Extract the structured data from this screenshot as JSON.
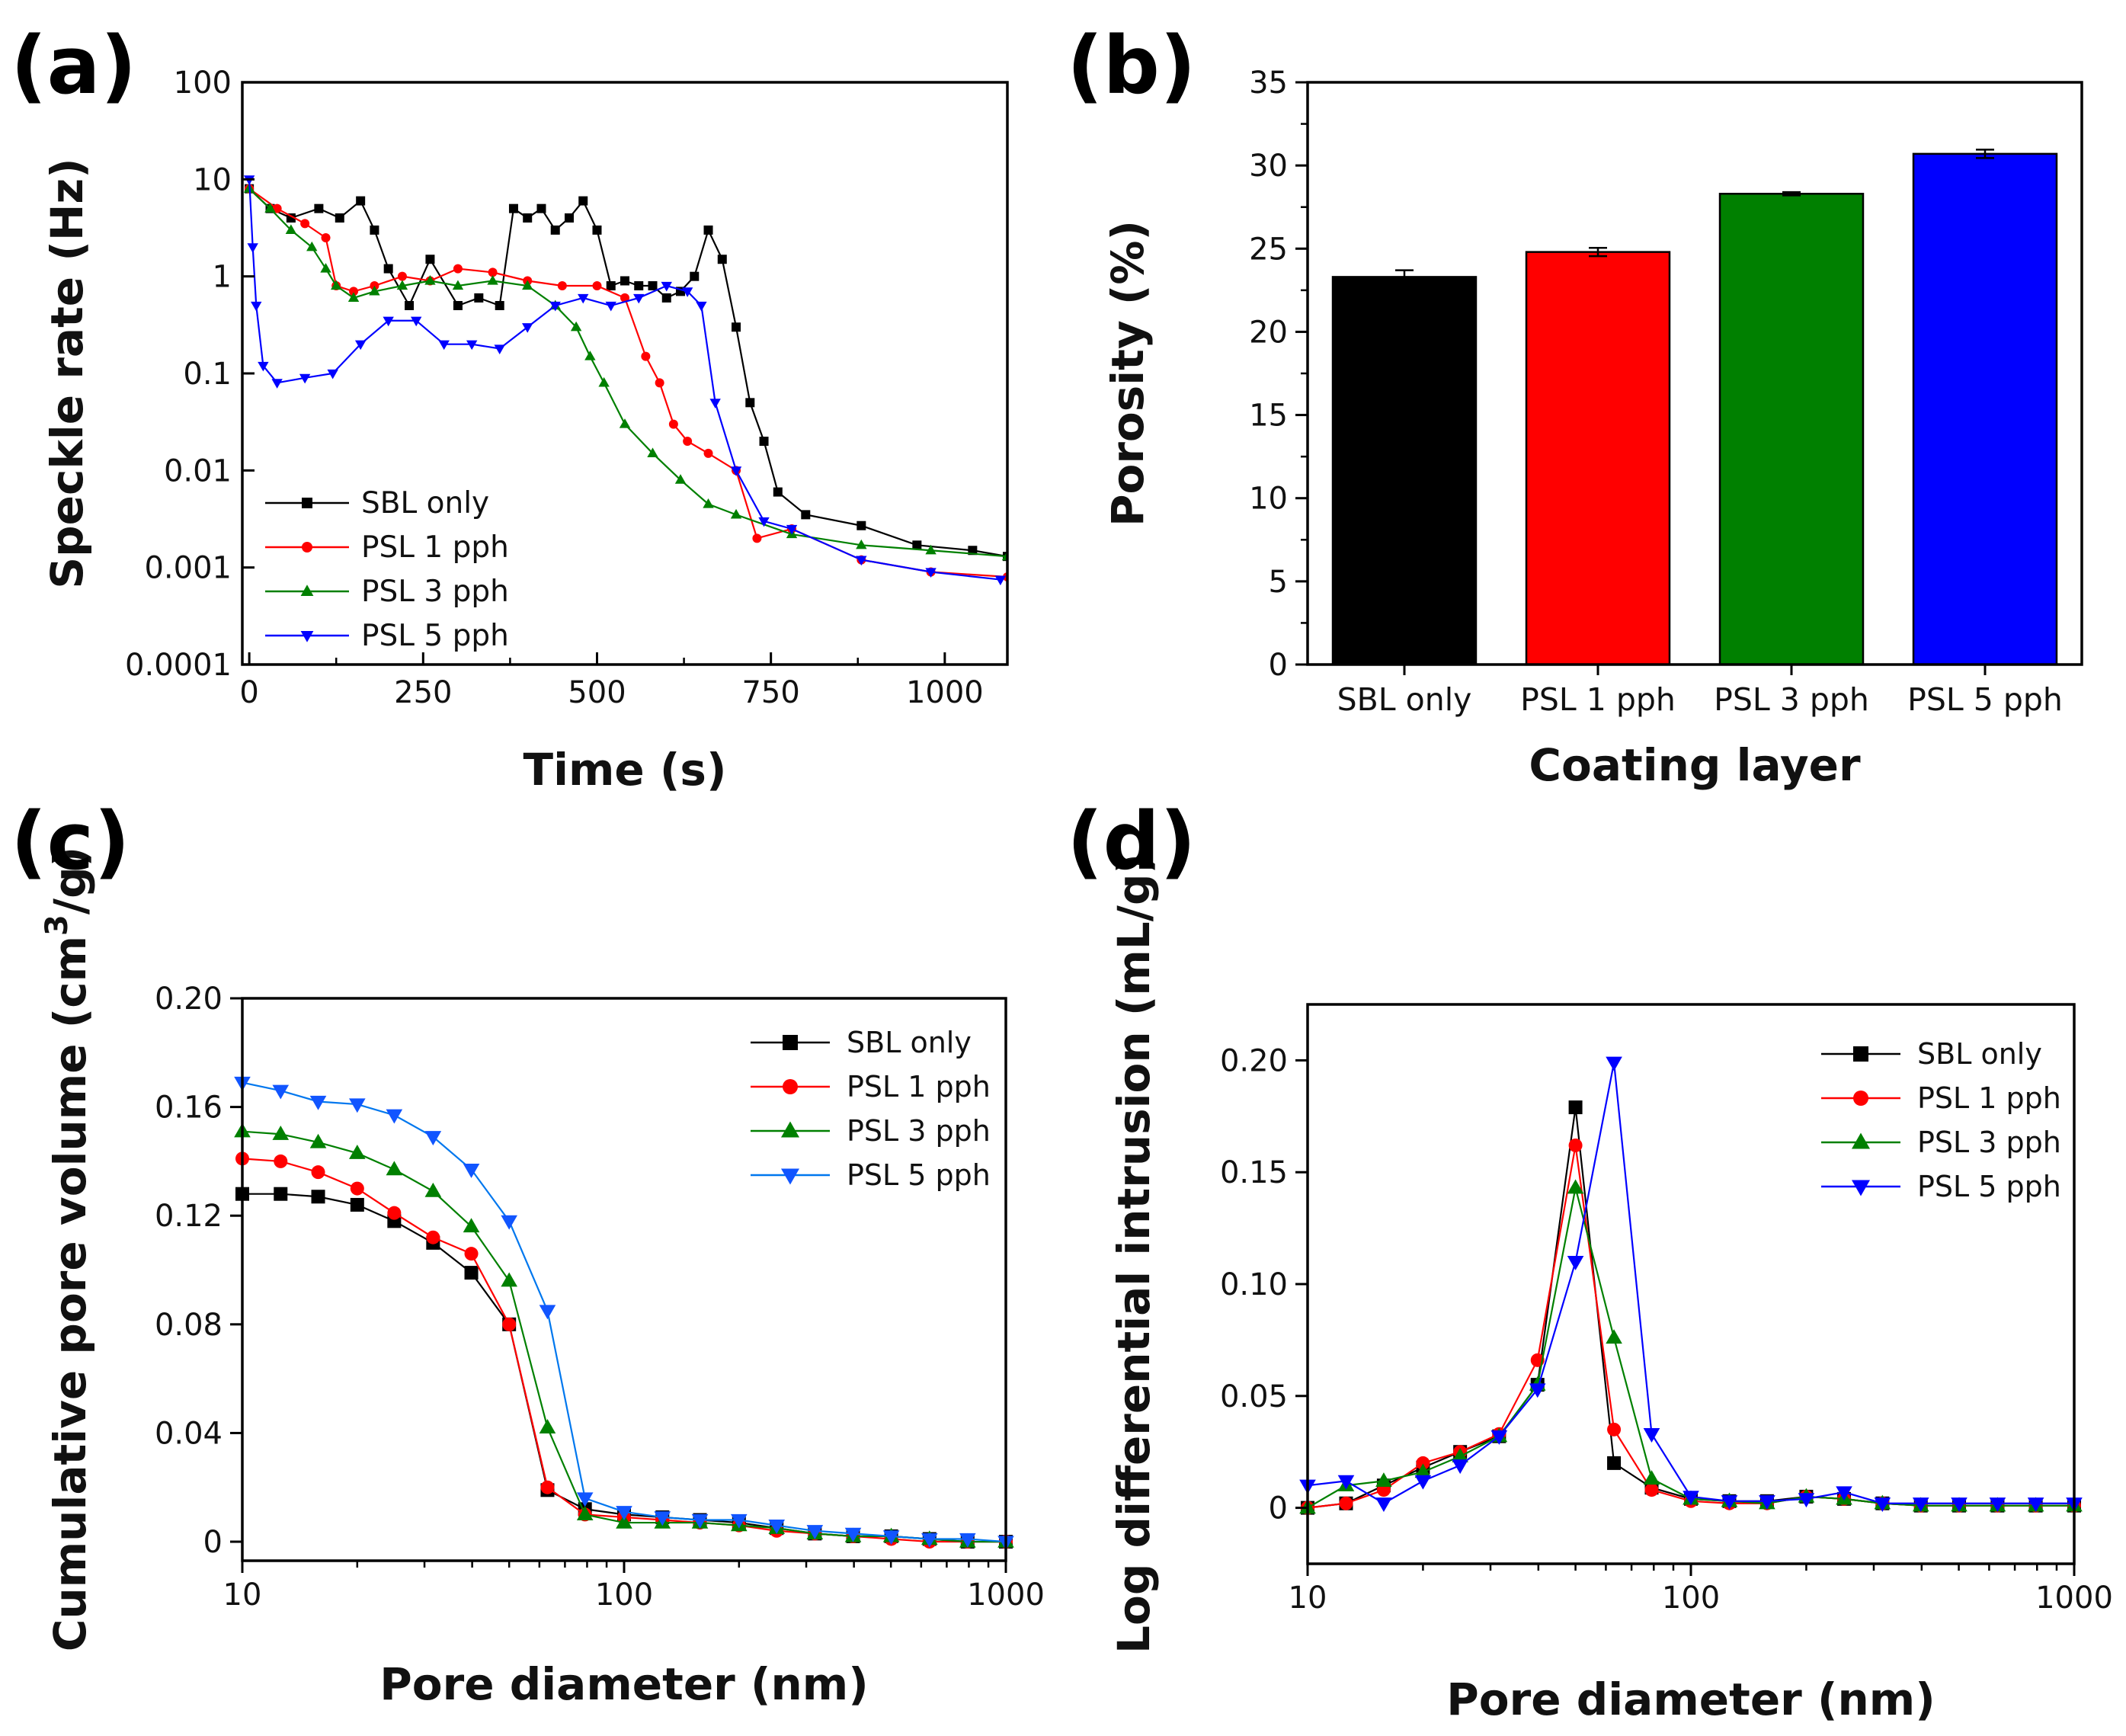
{
  "panels": {
    "a": "(a)",
    "b": "(b)",
    "c": "(c)",
    "d": "(d)"
  },
  "colors": {
    "SBL only": "#000000",
    "PSL 1 pph": "#ff0000",
    "PSL 3 pph": "#008000",
    "PSL 5 pph": "#0000ff",
    "PSL 5 pph (c)": "#0077ee",
    "PSL 5 pph marker (c)": "#1155ff"
  },
  "chart_data": [
    {
      "panel": "a",
      "type": "line",
      "xlabel": "Time (s)",
      "ylabel": "Speckle rate (Hz)",
      "yscale": "log",
      "xlim": [
        -10,
        1090
      ],
      "ylim": [
        0.0001,
        100
      ],
      "xticks": [
        "0",
        "250",
        "500",
        "750",
        "1000"
      ],
      "yticks": [
        "100",
        "10",
        "1",
        "0.1",
        "0.01",
        "0.001",
        "0.0001"
      ],
      "legend_position": "bottom-left",
      "series": [
        {
          "name": "SBL only",
          "x": [
            0,
            30,
            60,
            100,
            130,
            160,
            180,
            200,
            230,
            260,
            300,
            330,
            360,
            380,
            400,
            420,
            440,
            460,
            480,
            500,
            520,
            540,
            560,
            580,
            600,
            620,
            640,
            660,
            680,
            700,
            720,
            740,
            760,
            800,
            880,
            960,
            1040,
            1090
          ],
          "y": [
            8,
            5,
            4,
            5,
            4,
            6,
            3,
            1.2,
            0.5,
            1.5,
            0.5,
            0.6,
            0.5,
            5,
            4,
            5,
            3,
            4,
            6,
            3,
            0.8,
            0.9,
            0.8,
            0.8,
            0.6,
            0.7,
            1,
            3,
            1.5,
            0.3,
            0.05,
            0.02,
            0.006,
            0.0035,
            0.0027,
            0.0017,
            0.0015,
            0.0013
          ]
        },
        {
          "name": "PSL 1 pph",
          "x": [
            0,
            40,
            80,
            110,
            125,
            150,
            180,
            220,
            260,
            300,
            350,
            400,
            450,
            500,
            540,
            570,
            590,
            610,
            630,
            660,
            700,
            730,
            780,
            880,
            980,
            1090
          ],
          "y": [
            8,
            5,
            3.5,
            2.5,
            0.8,
            0.7,
            0.8,
            1,
            0.9,
            1.2,
            1.1,
            0.9,
            0.8,
            0.8,
            0.6,
            0.15,
            0.08,
            0.03,
            0.02,
            0.015,
            0.01,
            0.002,
            0.0025,
            0.0012,
            0.0009,
            0.0008
          ]
        },
        {
          "name": "PSL 3 pph",
          "x": [
            0,
            30,
            60,
            90,
            110,
            125,
            150,
            180,
            220,
            260,
            300,
            350,
            400,
            440,
            470,
            490,
            510,
            540,
            580,
            620,
            660,
            700,
            780,
            880,
            980,
            1090
          ],
          "y": [
            8,
            5,
            3,
            2,
            1.2,
            0.8,
            0.6,
            0.7,
            0.8,
            0.9,
            0.8,
            0.9,
            0.8,
            0.5,
            0.3,
            0.15,
            0.08,
            0.03,
            0.015,
            0.008,
            0.0045,
            0.0035,
            0.0022,
            0.0017,
            0.0015,
            0.0013
          ]
        },
        {
          "name": "PSL 5 pph",
          "x": [
            0,
            5,
            10,
            20,
            40,
            80,
            120,
            160,
            200,
            240,
            280,
            320,
            360,
            400,
            440,
            480,
            520,
            560,
            600,
            630,
            650,
            670,
            700,
            740,
            780,
            880,
            980,
            1080
          ],
          "y": [
            10,
            2,
            0.5,
            0.12,
            0.08,
            0.09,
            0.1,
            0.2,
            0.35,
            0.35,
            0.2,
            0.2,
            0.18,
            0.3,
            0.5,
            0.6,
            0.5,
            0.6,
            0.8,
            0.7,
            0.5,
            0.05,
            0.01,
            0.003,
            0.0025,
            0.0012,
            0.0009,
            0.00075
          ]
        }
      ]
    },
    {
      "panel": "b",
      "type": "bar",
      "xlabel": "Coating layer",
      "ylabel": "Porosity (%)",
      "ylim": [
        0,
        35
      ],
      "yticks": [
        "0",
        "5",
        "10",
        "15",
        "20",
        "25",
        "30",
        "35"
      ],
      "categories": [
        "SBL only",
        "PSL 1 pph",
        "PSL 3 pph",
        "PSL 5 pph"
      ],
      "values": [
        23.3,
        24.8,
        28.3,
        30.7
      ],
      "errors": [
        0.4,
        0.25,
        0.1,
        0.25
      ]
    },
    {
      "panel": "c",
      "type": "line",
      "xlabel": "Pore diameter (nm)",
      "ylabel": "Cumulative pore volume (cm",
      "ylabel_sup": "3",
      "ylabel_end": "/g)",
      "xscale": "log",
      "xlim": [
        10,
        1000
      ],
      "ylim": [
        -0.007,
        0.2
      ],
      "xticks": [
        "10",
        "100",
        "1000"
      ],
      "yticks": [
        "0",
        "0.04",
        "0.08",
        "0.12",
        "0.16",
        "0.20"
      ],
      "legend_position": "top-right",
      "series": [
        {
          "name": "SBL only",
          "x": [
            10,
            12.6,
            15.8,
            20,
            25,
            31.6,
            39.8,
            50,
            63,
            79,
            100,
            126,
            158,
            200,
            251,
            316,
            398,
            501,
            631,
            794,
            1000
          ],
          "y": [
            0.128,
            0.128,
            0.127,
            0.124,
            0.118,
            0.11,
            0.099,
            0.08,
            0.019,
            0.012,
            0.01,
            0.009,
            0.008,
            0.007,
            0.005,
            0.003,
            0.002,
            0.002,
            0.001,
            0.0,
            0.0
          ]
        },
        {
          "name": "PSL 1 pph",
          "x": [
            10,
            12.6,
            15.8,
            20,
            25,
            31.6,
            39.8,
            50,
            63,
            79,
            100,
            126,
            158,
            200,
            251,
            316,
            398,
            501,
            631,
            794,
            1000
          ],
          "y": [
            0.141,
            0.14,
            0.136,
            0.13,
            0.121,
            0.112,
            0.106,
            0.08,
            0.02,
            0.01,
            0.009,
            0.008,
            0.007,
            0.006,
            0.004,
            0.003,
            0.002,
            0.001,
            0.0,
            0.0,
            0.0
          ]
        },
        {
          "name": "PSL 3 pph",
          "x": [
            10,
            12.6,
            15.8,
            20,
            25,
            31.6,
            39.8,
            50,
            63,
            79,
            100,
            126,
            158,
            200,
            251,
            316,
            398,
            501,
            631,
            794,
            1000
          ],
          "y": [
            0.151,
            0.15,
            0.147,
            0.143,
            0.137,
            0.129,
            0.116,
            0.096,
            0.042,
            0.01,
            0.007,
            0.007,
            0.007,
            0.006,
            0.005,
            0.003,
            0.002,
            0.002,
            0.001,
            0.0,
            0.0
          ]
        },
        {
          "name": "PSL 5 pph",
          "x": [
            10,
            12.6,
            15.8,
            20,
            25,
            31.6,
            39.8,
            50,
            63,
            79,
            100,
            126,
            158,
            200,
            251,
            316,
            398,
            501,
            631,
            794,
            1000
          ],
          "y": [
            0.169,
            0.166,
            0.162,
            0.161,
            0.157,
            0.149,
            0.137,
            0.118,
            0.085,
            0.016,
            0.011,
            0.009,
            0.008,
            0.008,
            0.006,
            0.004,
            0.003,
            0.002,
            0.001,
            0.001,
            0.0
          ]
        }
      ]
    },
    {
      "panel": "d",
      "type": "line",
      "xlabel": "Pore diameter (nm)",
      "ylabel": "Log differential intrusion (mL/g)",
      "xscale": "log",
      "xlim": [
        10,
        1000
      ],
      "ylim": [
        -0.025,
        0.225
      ],
      "xticks": [
        "10",
        "100",
        "1000"
      ],
      "yticks": [
        "0",
        "0.05",
        "0.10",
        "0.15",
        "0.20"
      ],
      "legend_position": "top-right",
      "series": [
        {
          "name": "SBL only",
          "x": [
            10,
            12.6,
            15.8,
            20,
            25,
            31.6,
            39.8,
            50,
            63,
            79,
            100,
            126,
            158,
            200,
            251,
            316,
            398,
            501,
            631,
            794,
            1000
          ],
          "y": [
            0.0,
            0.002,
            0.01,
            0.018,
            0.025,
            0.032,
            0.055,
            0.179,
            0.02,
            0.009,
            0.004,
            0.003,
            0.003,
            0.005,
            0.004,
            0.002,
            0.001,
            0.001,
            0.001,
            0.001,
            0.001
          ]
        },
        {
          "name": "PSL 1 pph",
          "x": [
            10,
            12.6,
            15.8,
            20,
            25,
            31.6,
            39.8,
            50,
            63,
            79,
            100,
            126,
            158,
            200,
            251,
            316,
            398,
            501,
            631,
            794,
            1000
          ],
          "y": [
            0.0,
            0.002,
            0.008,
            0.02,
            0.025,
            0.033,
            0.066,
            0.162,
            0.035,
            0.008,
            0.003,
            0.002,
            0.002,
            0.005,
            0.004,
            0.002,
            0.001,
            0.001,
            0.001,
            0.001,
            0.001
          ]
        },
        {
          "name": "PSL 3 pph",
          "x": [
            10,
            12.6,
            15.8,
            20,
            25,
            31.6,
            39.8,
            50,
            63,
            79,
            100,
            126,
            158,
            200,
            251,
            316,
            398,
            501,
            631,
            794,
            1000
          ],
          "y": [
            0.0,
            0.01,
            0.012,
            0.016,
            0.023,
            0.032,
            0.055,
            0.143,
            0.076,
            0.013,
            0.004,
            0.003,
            0.002,
            0.005,
            0.004,
            0.002,
            0.001,
            0.001,
            0.001,
            0.001,
            0.001
          ]
        },
        {
          "name": "PSL 5 pph",
          "x": [
            10,
            12.6,
            15.8,
            20,
            25,
            31.6,
            39.8,
            50,
            63,
            79,
            100,
            126,
            158,
            200,
            251,
            316,
            398,
            501,
            631,
            794,
            1000
          ],
          "y": [
            0.01,
            0.012,
            0.002,
            0.012,
            0.019,
            0.032,
            0.053,
            0.11,
            0.199,
            0.033,
            0.005,
            0.003,
            0.003,
            0.004,
            0.007,
            0.002,
            0.002,
            0.002,
            0.002,
            0.002,
            0.002
          ]
        }
      ]
    }
  ]
}
